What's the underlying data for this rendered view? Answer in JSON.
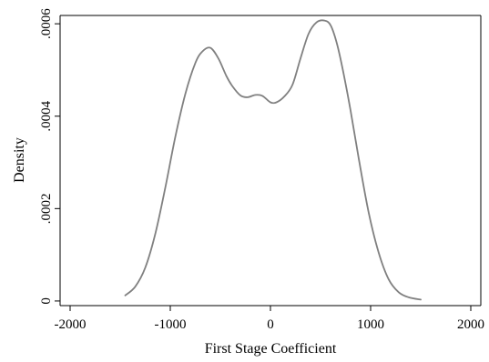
{
  "chart_data": {
    "type": "line",
    "title": "",
    "xlabel": "First Stage Coefficient",
    "ylabel": "Density",
    "xlim": [
      -2100,
      2100
    ],
    "ylim": [
      -1e-05,
      0.000618
    ],
    "x_ticks": [
      -2000,
      -1000,
      0,
      1000,
      2000
    ],
    "x_tick_labels": [
      "-2000",
      "-1000",
      "0",
      "1000",
      "2000"
    ],
    "y_ticks": [
      0,
      0.0002,
      0.0004,
      0.0006
    ],
    "y_tick_labels": [
      "0",
      ".0002",
      ".0004",
      ".0006"
    ],
    "grid": false,
    "legend": "none",
    "series": [
      {
        "color": "#808080",
        "x": [
          -1450,
          -1350,
          -1250,
          -1150,
          -1050,
          -950,
          -850,
          -750,
          -680,
          -600,
          -520,
          -440,
          -380,
          -300,
          -230,
          -150,
          -80,
          0,
          60,
          140,
          220,
          300,
          380,
          460,
          540,
          600,
          660,
          720,
          800,
          880,
          980,
          1080,
          1180,
          1280,
          1380,
          1500
        ],
        "y": [
          1.2e-05,
          3.1e-05,
          7.2e-05,
          0.000145,
          0.000245,
          0.000355,
          0.000448,
          0.000515,
          0.00054,
          0.000548,
          0.000525,
          0.000487,
          0.000465,
          0.000445,
          0.000441,
          0.000446,
          0.000444,
          0.00043,
          0.00043,
          0.000443,
          0.000468,
          0.000525,
          0.000578,
          0.000603,
          0.000607,
          0.000597,
          0.00056,
          0.000503,
          0.000412,
          0.00031,
          0.000192,
          0.000105,
          4.7e-05,
          1.9e-05,
          8e-06,
          3e-06
        ]
      }
    ]
  }
}
